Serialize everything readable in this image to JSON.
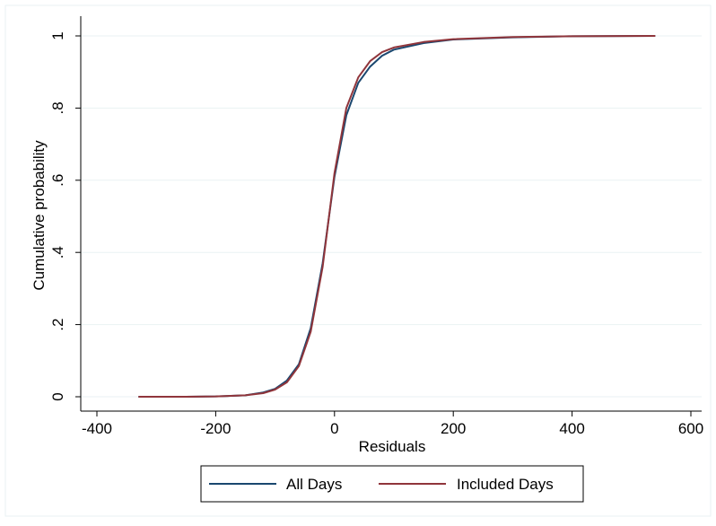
{
  "chart_data": {
    "type": "line",
    "xlabel": "Residuals",
    "ylabel": "Cumulative probability",
    "xlim": [
      -400,
      600
    ],
    "ylim": [
      0,
      1
    ],
    "xticks": [
      -400,
      -200,
      0,
      200,
      400,
      600
    ],
    "xtick_labels": [
      "-400",
      "-200",
      "0",
      "200",
      "400",
      "600"
    ],
    "yticks": [
      0,
      0.2,
      0.4,
      0.6,
      0.8,
      1
    ],
    "ytick_labels": [
      "0",
      ".2",
      ".4",
      ".6",
      ".8",
      "1"
    ],
    "grid": true,
    "legend_position": "bottom",
    "series": [
      {
        "name": "All Days",
        "color": "#1a476f",
        "x": [
          -330,
          -250,
          -200,
          -150,
          -120,
          -100,
          -80,
          -60,
          -40,
          -20,
          0,
          20,
          40,
          60,
          80,
          100,
          150,
          200,
          300,
          400,
          540
        ],
        "y": [
          0.0,
          0.0,
          0.001,
          0.004,
          0.012,
          0.022,
          0.045,
          0.09,
          0.19,
          0.37,
          0.61,
          0.78,
          0.87,
          0.915,
          0.945,
          0.962,
          0.98,
          0.99,
          0.996,
          0.999,
          1.0
        ]
      },
      {
        "name": "Included Days",
        "color": "#90353b",
        "x": [
          -330,
          -250,
          -200,
          -150,
          -120,
          -100,
          -80,
          -60,
          -40,
          -20,
          0,
          20,
          40,
          60,
          80,
          100,
          150,
          200,
          300,
          400,
          540
        ],
        "y": [
          0.0,
          0.0,
          0.001,
          0.004,
          0.01,
          0.02,
          0.04,
          0.085,
          0.18,
          0.36,
          0.62,
          0.8,
          0.885,
          0.93,
          0.955,
          0.968,
          0.983,
          0.991,
          0.997,
          0.999,
          1.0
        ]
      }
    ]
  }
}
